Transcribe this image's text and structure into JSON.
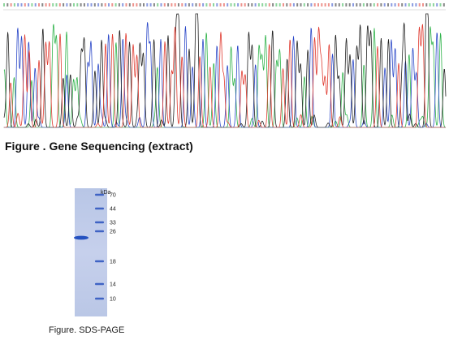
{
  "figure_sequencing": {
    "caption": "Figure . Gene Sequencing (extract)",
    "base_colors": {
      "A": "#2fb34a",
      "C": "#2b48c8",
      "G": "#222222",
      "T": "#e03a2f"
    }
  },
  "figure_gel": {
    "caption": "Figure. SDS-PAGE",
    "unit": "kDa",
    "markers": [
      "70",
      "44",
      "33",
      "26",
      "18",
      "14",
      "10"
    ],
    "lane_color": "#c4cfea",
    "marker_band_color": "#3f63c4",
    "sample_band_color": "#2451c0"
  }
}
